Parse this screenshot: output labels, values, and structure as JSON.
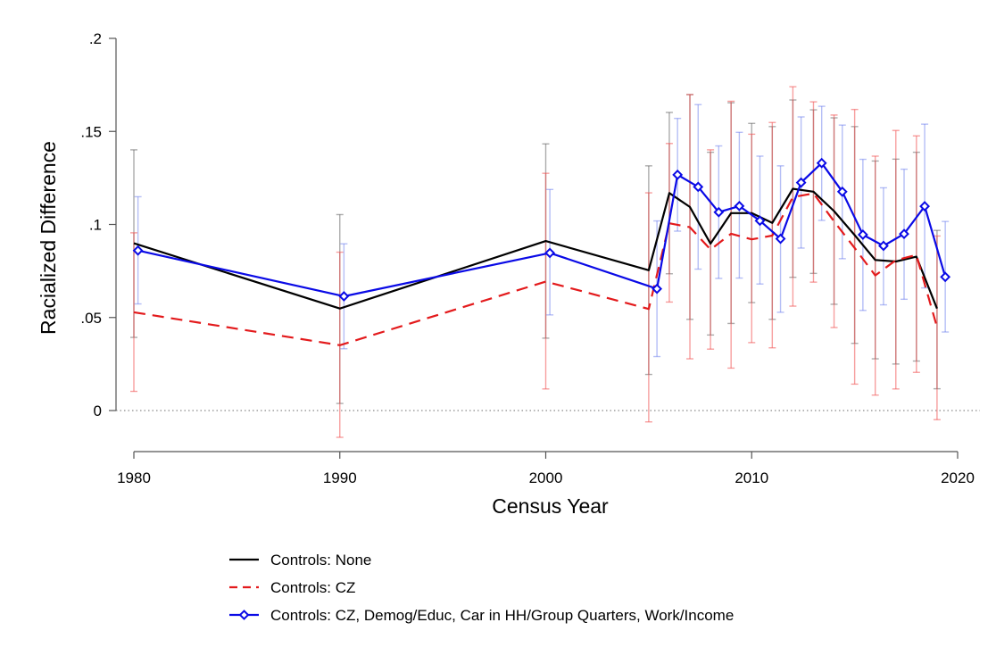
{
  "chart_data": {
    "type": "line",
    "xlabel": "Census Year",
    "ylabel": "Racialized Difference",
    "xlim": [
      1980,
      2020
    ],
    "ylim": [
      0,
      0.2
    ],
    "x_ticks": [
      1980,
      1990,
      2000,
      2010,
      2020
    ],
    "x_tick_labels": [
      "1980",
      "1990",
      "2000",
      "2010",
      "2020"
    ],
    "y_ticks": [
      0,
      0.05,
      0.1,
      0.15,
      0.2
    ],
    "y_tick_labels": [
      "0",
      ".05",
      ".1",
      ".15",
      ".2"
    ],
    "zero_reference_line": "dotted",
    "legend_position": "bottom",
    "series": [
      {
        "name": "Controls: None",
        "color": "#000000",
        "dash": "solid",
        "marker": "none",
        "x": [
          1980,
          1990,
          2000,
          2005,
          2006,
          2007,
          2008,
          2009,
          2010,
          2011,
          2012,
          2013,
          2014,
          2015,
          2016,
          2017,
          2018,
          2019
        ],
        "y": [
          0.0899,
          0.0548,
          0.0911,
          0.0754,
          0.1169,
          0.1094,
          0.0897,
          0.1061,
          0.1061,
          0.1008,
          0.1192,
          0.1176,
          0.1072,
          0.0943,
          0.0809,
          0.0801,
          0.0827,
          0.0548
        ],
        "ci_low": [
          0.0393,
          0.0038,
          0.0389,
          0.0194,
          0.0735,
          0.049,
          0.0406,
          0.0468,
          0.058,
          0.049,
          0.0716,
          0.0737,
          0.0571,
          0.0361,
          0.0278,
          0.025,
          0.0266,
          0.0117
        ],
        "ci_high": [
          0.1401,
          0.1053,
          0.1433,
          0.1315,
          0.1602,
          0.1698,
          0.1388,
          0.1654,
          0.1543,
          0.1526,
          0.1669,
          0.1616,
          0.1573,
          0.1526,
          0.1341,
          0.1351,
          0.1388,
          0.0968
        ]
      },
      {
        "name": "Controls: CZ",
        "color": "#e31a1c",
        "dash": "dashed",
        "marker": "none",
        "x": [
          1980,
          1990,
          2000,
          2005,
          2006,
          2007,
          2008,
          2009,
          2010,
          2011,
          2012,
          2013,
          2014,
          2015,
          2016,
          2017,
          2018,
          2019
        ],
        "y": [
          0.0528,
          0.0351,
          0.0693,
          0.0546,
          0.1006,
          0.0985,
          0.0865,
          0.095,
          0.092,
          0.094,
          0.1147,
          0.1167,
          0.1017,
          0.0874,
          0.0726,
          0.0808,
          0.0836,
          0.0449
        ],
        "ci_low": [
          0.0103,
          -0.0144,
          0.0116,
          -0.0061,
          0.0583,
          0.0278,
          0.033,
          0.0228,
          0.0365,
          0.0337,
          0.0561,
          0.069,
          0.0446,
          0.0142,
          0.0083,
          0.0116,
          0.0205,
          -0.0049
        ],
        "ci_high": [
          0.0955,
          0.0851,
          0.1275,
          0.117,
          0.1435,
          0.1698,
          0.1401,
          0.1662,
          0.1485,
          0.1548,
          0.174,
          0.1659,
          0.1588,
          0.1618,
          0.1367,
          0.1505,
          0.1476,
          0.0938
        ]
      },
      {
        "name": "Controls: CZ, Demog/Educ, Car in HH/Group Quarters, Work/Income",
        "color": "#0a0ae6",
        "dash": "solid",
        "marker": "diamond",
        "x": [
          1980.2,
          1990.2,
          2000.2,
          2005.4,
          2006.4,
          2007.4,
          2008.4,
          2009.4,
          2010.4,
          2011.4,
          2012.4,
          2013.4,
          2014.4,
          2015.4,
          2016.4,
          2017.4,
          2018.4,
          2019.4
        ],
        "y": [
          0.086,
          0.0614,
          0.0847,
          0.0654,
          0.1267,
          0.1202,
          0.1066,
          0.1099,
          0.102,
          0.0923,
          0.1225,
          0.133,
          0.1176,
          0.0945,
          0.0885,
          0.0949,
          0.1098,
          0.0718
        ],
        "ci_low": [
          0.0573,
          0.0332,
          0.0514,
          0.029,
          0.0964,
          0.076,
          0.071,
          0.0712,
          0.068,
          0.0528,
          0.0873,
          0.1022,
          0.0816,
          0.0538,
          0.0568,
          0.0598,
          0.0659,
          0.0422
        ],
        "ci_high": [
          0.1149,
          0.0896,
          0.1188,
          0.1019,
          0.157,
          0.1644,
          0.1422,
          0.1495,
          0.1367,
          0.1315,
          0.1578,
          0.1635,
          0.1534,
          0.135,
          0.1197,
          0.1297,
          0.1539,
          0.1016
        ]
      }
    ]
  }
}
